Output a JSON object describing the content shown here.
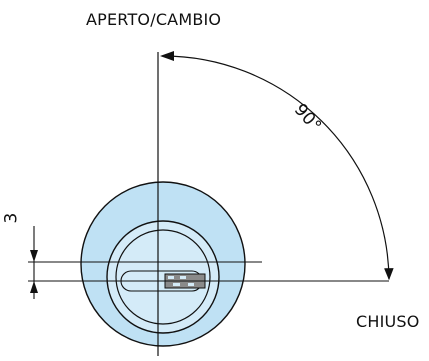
{
  "labels": {
    "open_change": "APERTO/CAMBIO",
    "closed": "CHIUSO",
    "angle": "90°",
    "offset_dimension": "3"
  },
  "colors": {
    "cylinder_fill": "#bfe1f4",
    "plug_fill": "#d4ebf8",
    "pin_red": "#e03a2b",
    "key_gray": "#8a8a8a",
    "line": "#111111"
  }
}
